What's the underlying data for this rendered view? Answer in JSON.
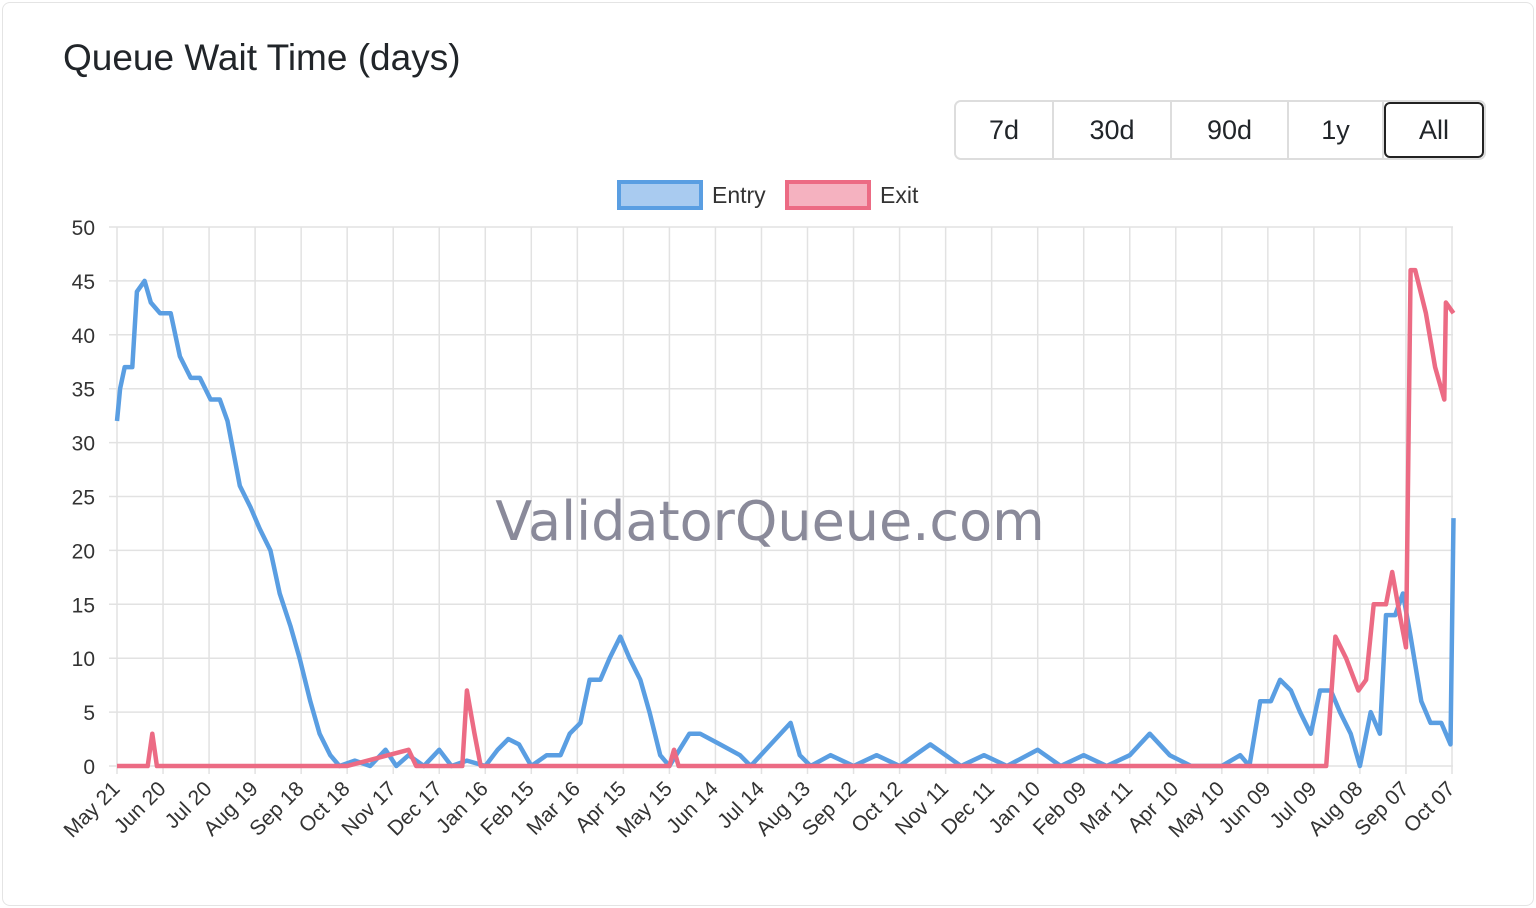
{
  "title": "Queue Wait Time (days)",
  "range_buttons": [
    {
      "label": "7d",
      "active": false
    },
    {
      "label": "30d",
      "active": false
    },
    {
      "label": "90d",
      "active": false
    },
    {
      "label": "1y",
      "active": false
    },
    {
      "label": "All",
      "active": true
    }
  ],
  "watermark": "ValidatorQueue.com",
  "chart_data": {
    "type": "line",
    "title": "Queue Wait Time (days)",
    "xlabel": "",
    "ylabel": "",
    "x_unit": "days since May 21",
    "xlim": [
      0,
      871
    ],
    "ylim": [
      0,
      50
    ],
    "yticks": [
      0,
      5,
      10,
      15,
      20,
      25,
      30,
      35,
      40,
      45,
      50
    ],
    "grid": true,
    "legend_position": "top-center",
    "x_tick_labels": [
      "May 21",
      "Jun 20",
      "Jul 20",
      "Aug 19",
      "Sep 18",
      "Oct 18",
      "Nov 17",
      "Dec 17",
      "Jan 16",
      "Feb 15",
      "Mar 16",
      "Apr 15",
      "May 15",
      "Jun 14",
      "Jul 14",
      "Aug 13",
      "Sep 12",
      "Oct 12",
      "Nov 11",
      "Dec 11",
      "Jan 10",
      "Feb 09",
      "Mar 11",
      "Apr 10",
      "May 10",
      "Jun 09",
      "Jul 09",
      "Aug 08",
      "Sep 07",
      "Oct 07"
    ],
    "x_tick_spacing_days": 30,
    "series": [
      {
        "name": "Entry",
        "color": "#5a9ee2",
        "points": [
          [
            0,
            32
          ],
          [
            2,
            35
          ],
          [
            5,
            37
          ],
          [
            10,
            37
          ],
          [
            13,
            44
          ],
          [
            18,
            45
          ],
          [
            22,
            43
          ],
          [
            28,
            42
          ],
          [
            35,
            42
          ],
          [
            41,
            38
          ],
          [
            48,
            36
          ],
          [
            54,
            36
          ],
          [
            61,
            34
          ],
          [
            67,
            34
          ],
          [
            72,
            32
          ],
          [
            80,
            26
          ],
          [
            87,
            24
          ],
          [
            93,
            22
          ],
          [
            100,
            20
          ],
          [
            106,
            16
          ],
          [
            113,
            13
          ],
          [
            119,
            10
          ],
          [
            126,
            6
          ],
          [
            132,
            3
          ],
          [
            139,
            1
          ],
          [
            145,
            0
          ],
          [
            155,
            0.5
          ],
          [
            165,
            0
          ],
          [
            175,
            1.5
          ],
          [
            182,
            0
          ],
          [
            190,
            1
          ],
          [
            200,
            0
          ],
          [
            210,
            1.5
          ],
          [
            218,
            0
          ],
          [
            228,
            0.5
          ],
          [
            240,
            0
          ],
          [
            248,
            1.5
          ],
          [
            255,
            2.5
          ],
          [
            262,
            2
          ],
          [
            270,
            0
          ],
          [
            280,
            1
          ],
          [
            289,
            1
          ],
          [
            295,
            3
          ],
          [
            302,
            4
          ],
          [
            308,
            8
          ],
          [
            315,
            8
          ],
          [
            321,
            10
          ],
          [
            328,
            12
          ],
          [
            334,
            10
          ],
          [
            341,
            8
          ],
          [
            347,
            5
          ],
          [
            354,
            1
          ],
          [
            360,
            0
          ],
          [
            373,
            3
          ],
          [
            380,
            3
          ],
          [
            393,
            2
          ],
          [
            406,
            1
          ],
          [
            413,
            0
          ],
          [
            426,
            2
          ],
          [
            439,
            4
          ],
          [
            445,
            1
          ],
          [
            452,
            0
          ],
          [
            465,
            1
          ],
          [
            480,
            0
          ],
          [
            495,
            1
          ],
          [
            510,
            0
          ],
          [
            530,
            2
          ],
          [
            550,
            0
          ],
          [
            565,
            1
          ],
          [
            580,
            0
          ],
          [
            600,
            1.5
          ],
          [
            615,
            0
          ],
          [
            630,
            1
          ],
          [
            645,
            0
          ],
          [
            660,
            1
          ],
          [
            673,
            3
          ],
          [
            686,
            1
          ],
          [
            700,
            0
          ],
          [
            706,
            0
          ],
          [
            720,
            0
          ],
          [
            732,
            1
          ],
          [
            738,
            0
          ],
          [
            745,
            6
          ],
          [
            752,
            6
          ],
          [
            758,
            8
          ],
          [
            765,
            7
          ],
          [
            771,
            5
          ],
          [
            778,
            3
          ],
          [
            784,
            7
          ],
          [
            791,
            7
          ],
          [
            797,
            5
          ],
          [
            804,
            3
          ],
          [
            810,
            0
          ],
          [
            817,
            5
          ],
          [
            823,
            3
          ],
          [
            827,
            14
          ],
          [
            833,
            14
          ],
          [
            838,
            16
          ],
          [
            843,
            12
          ],
          [
            850,
            6
          ],
          [
            856,
            4
          ],
          [
            863,
            4
          ],
          [
            869,
            2
          ],
          [
            871,
            23
          ]
        ]
      },
      {
        "name": "Exit",
        "color": "#ec6b84",
        "points": [
          [
            0,
            0
          ],
          [
            20,
            0
          ],
          [
            23,
            3
          ],
          [
            26,
            0
          ],
          [
            150,
            0
          ],
          [
            190,
            1.5
          ],
          [
            195,
            0
          ],
          [
            225,
            0
          ],
          [
            228,
            7
          ],
          [
            233,
            3
          ],
          [
            237,
            0
          ],
          [
            360,
            0
          ],
          [
            363,
            1.5
          ],
          [
            366,
            0
          ],
          [
            785,
            0
          ],
          [
            788,
            0
          ],
          [
            794,
            12
          ],
          [
            801,
            10
          ],
          [
            809,
            7
          ],
          [
            814,
            8
          ],
          [
            819,
            15
          ],
          [
            827,
            15
          ],
          [
            831,
            18
          ],
          [
            836,
            14
          ],
          [
            840,
            11
          ],
          [
            843,
            46
          ],
          [
            846,
            46
          ],
          [
            853,
            42
          ],
          [
            859,
            37
          ],
          [
            865,
            34
          ],
          [
            866,
            43
          ],
          [
            871,
            42
          ]
        ]
      }
    ]
  }
}
